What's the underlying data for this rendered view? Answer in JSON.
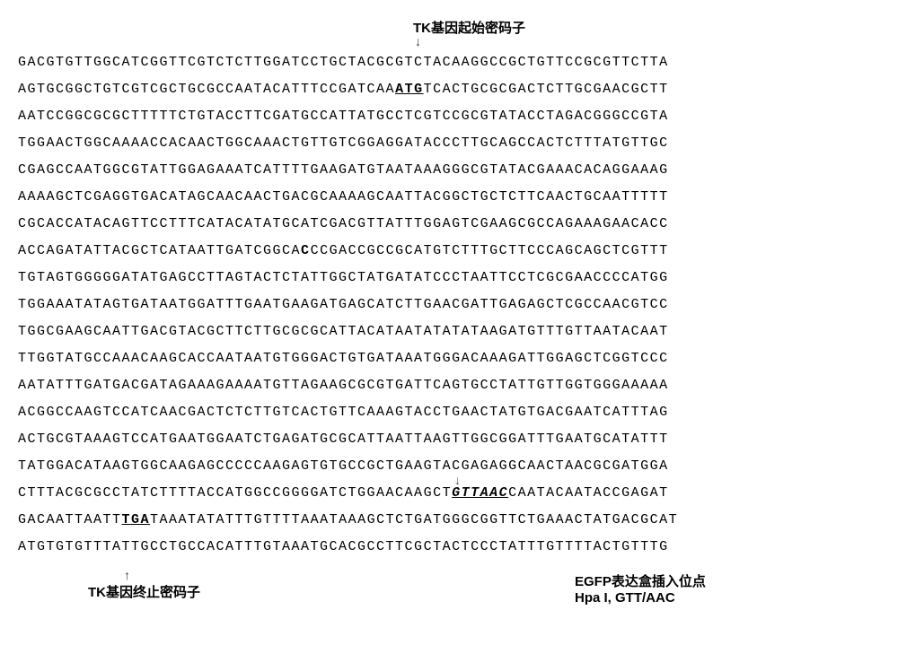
{
  "header": {
    "label": "TK基因起始密码子"
  },
  "sequence": {
    "lines": [
      {
        "pre": "GACGTGTTGGCATCGGTTCGTCTCTTGGATCCTGCTACGCGTCTACAAGGCCGCTGTTCCGCGTTCTTA",
        "highlight": "",
        "post": "",
        "style": ""
      },
      {
        "pre": "AGTGCGGCTGTCGTCGCTGCGCCAATACATTTCCGATCAA",
        "highlight": "ATG",
        "post": "TCACTGCGCGACTCTTGCGAACGCTT",
        "style": "bold-underline"
      },
      {
        "pre": "AATCCGGCGCGCTTTTTCTGTACCTTCGATGCCATTATGCCTCGTCCGCGTATACCTAGACGGGCCGTA",
        "highlight": "",
        "post": "",
        "style": ""
      },
      {
        "pre": "TGGAACTGGCAAAACCACAACTGGCAAACTGTTGTCGGAGGATACCCTTGCAGCCACTCTTTATGTTGC",
        "highlight": "",
        "post": "",
        "style": ""
      },
      {
        "pre": "CGAGCCAATGGCGTATTGGAGAAATCATTTTGAAGATGTAATAAAGGGCGTATACGAAACACAGGAAAG",
        "highlight": "",
        "post": "",
        "style": ""
      },
      {
        "pre": "AAAAGCTCGAGGTGACATAGCAACAACTGACGCAAAAGCAATTACGGCTGCTCTTCAACTGCAATTTTT",
        "highlight": "",
        "post": "",
        "style": ""
      },
      {
        "pre": "CGCACCATACAGTTCCTTTCATACATATGCATCGACGTTATTTGGAGTCGAAGCGCCAGAAAGAACACC",
        "highlight": "",
        "post": "",
        "style": ""
      },
      {
        "pre": "ACCAGATATTACGCTCATAATTGATCGGCA",
        "highlight": "C",
        "post": "CCGACCGCCGCATGTCTTTGCTTCCCAGCAGCTCGTTT",
        "style": "bold-only"
      },
      {
        "pre": "TGTAGTGGGGGATATGAGCCTTAGTACTCTATTGGCTATGATATCCCTAATTCCTCGCGAACCCCATGG",
        "highlight": "",
        "post": "",
        "style": ""
      },
      {
        "pre": "TGGAAATATAGTGATAATGGATTTGAATGAAGATGAGCATCTTGAACGATTGAGAGCTCGCCAACGTCC",
        "highlight": "",
        "post": "",
        "style": ""
      },
      {
        "pre": "TGGCGAAGCAATTGACGTACGCTTCTTGCGCGCATTACATAATATATATAAGATGTTTGTTAATACAAT",
        "highlight": "",
        "post": "",
        "style": ""
      },
      {
        "pre": "TTGGTATGCCAAACAAGCACCAATAATGTGGGACTGTGATAAATGGGACAAAGATTGGAGCTCGGTCCC",
        "highlight": "",
        "post": "",
        "style": ""
      },
      {
        "pre": "AATATTTGATGACGATAGAAAGAAAATGTTAGAAGCGCGTGATTCAGTGCCTATTGTTGGTGGGAAAAA",
        "highlight": "",
        "post": "",
        "style": ""
      },
      {
        "pre": "ACGGCCAAGTCCATCAACGACTCTCTTGTCACTGTTCAAAGTACCTGAACTATGTGACGAATCATTTAG",
        "highlight": "",
        "post": "",
        "style": ""
      },
      {
        "pre": "ACTGCGTAAAGTCCATGAATGGAATCTGAGATGCGCATTAATTAAGTTGGCGGATTTGAATGCATATTT",
        "highlight": "",
        "post": "",
        "style": ""
      },
      {
        "pre": "TATGGACATAAGTGGCAAGAGCCCCCAAGAGTGTGCCGCTGAAGTACGAGAGGCAACTAACGCGATGGA",
        "highlight": "",
        "post": "",
        "style": ""
      },
      {
        "pre": "CTTTACGCGCCTATCTTTTACCATGGCCGGGGATCTGGAACAAGCT",
        "highlight": "GTTAAC",
        "post": "CAATACAATACCGAGAT",
        "style": "bold-italic-underline",
        "arrow": true
      },
      {
        "pre": "GACAATTAATT",
        "highlight": "TGA",
        "post": "TAAATATATTTGTTTTAAATAAAGCTCTGATGGGCGGTTCTGAAACTATGACGCAT",
        "style": "bold-underline"
      },
      {
        "pre": "ATGTGTGTTTATTGCCTGCCACATTTGTAAATGCACGCCTTCGCTACTCCCTATTTGTTTTACTGTTTG",
        "highlight": "",
        "post": "",
        "style": ""
      }
    ]
  },
  "footer": {
    "left_label": "TK基因终止密码子",
    "right_line1": "EGFP表达盒插入位点",
    "right_line2": "Hpa I, GTT/AAC"
  },
  "styling": {
    "background": "#ffffff",
    "text_color": "#000000",
    "font_family_sequence": "Courier New",
    "font_family_labels": "Arial",
    "font_size_sequence": 15,
    "font_size_label": 15,
    "letter_spacing": 1.5,
    "line_height": 2.0
  }
}
